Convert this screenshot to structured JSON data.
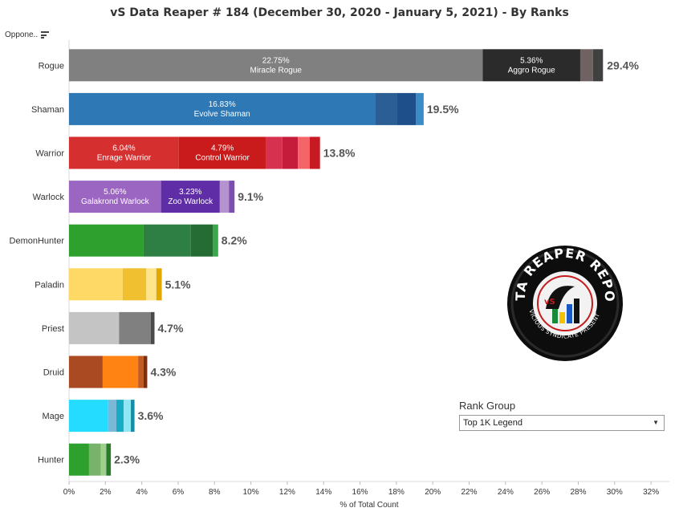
{
  "title": "vS Data Reaper #  184 (December 30, 2020 - January 5, 2021) - By Ranks",
  "sort_label": "Oppone..",
  "icons": {
    "sort": "sort-descending-icon",
    "dropdown": "chevron-down-icon"
  },
  "rank_group": {
    "label": "Rank Group",
    "selected": "Top 1K Legend"
  },
  "logo": {
    "title": "DATA REAPER REPORT",
    "subtitle": "VICIOUS SYNDICATE PRESENTS",
    "initials": "vS"
  },
  "chart_data": {
    "type": "bar",
    "orientation": "horizontal",
    "stacked": true,
    "title": "vS Data Reaper #  184 (December 30, 2020 - January 5, 2021) - By Ranks",
    "xlabel": "% of Total Count",
    "ylabel": "",
    "xlim": [
      0,
      32
    ],
    "xticks": [
      0,
      2,
      4,
      6,
      8,
      10,
      12,
      14,
      16,
      18,
      20,
      22,
      24,
      26,
      28,
      30,
      32
    ],
    "tick_suffix": "%",
    "grid": false,
    "categories": [
      "Rogue",
      "Shaman",
      "Warrior",
      "Warlock",
      "DemonHunter",
      "Paladin",
      "Priest",
      "Druid",
      "Mage",
      "Hunter"
    ],
    "totals": [
      "29.4%",
      "19.5%",
      "13.8%",
      "9.1%",
      "8.2%",
      "5.1%",
      "4.7%",
      "4.3%",
      "3.6%",
      "2.3%"
    ],
    "total_values": [
      29.4,
      19.5,
      13.8,
      9.1,
      8.2,
      5.1,
      4.7,
      4.3,
      3.6,
      2.3
    ],
    "segments": [
      [
        {
          "value": 22.75,
          "color": "#808080",
          "label": "22.75%",
          "name": "Miracle Rogue"
        },
        {
          "value": 5.36,
          "color": "#2b2b2b",
          "label": "5.36%",
          "name": "Aggro Rogue"
        },
        {
          "value": 0.7,
          "color": "#6e6262"
        },
        {
          "value": 0.55,
          "color": "#404040"
        }
      ],
      [
        {
          "value": 16.83,
          "color": "#2e78b5",
          "label": "16.83%",
          "name": "Evolve Shaman"
        },
        {
          "value": 1.2,
          "color": "#2b5e94"
        },
        {
          "value": 1.05,
          "color": "#1f4f8a"
        },
        {
          "value": 0.42,
          "color": "#3a8bc8"
        }
      ],
      [
        {
          "value": 6.04,
          "color": "#d62f2f",
          "label": "6.04%",
          "name": "Enrage Warrior"
        },
        {
          "value": 4.79,
          "color": "#c91b1b",
          "label": "4.79%",
          "name": "Control Warrior"
        },
        {
          "value": 0.9,
          "color": "#d6314f"
        },
        {
          "value": 0.85,
          "color": "#c41c3a"
        },
        {
          "value": 0.65,
          "color": "#f4656a"
        },
        {
          "value": 0.57,
          "color": "#c71a22"
        }
      ],
      [
        {
          "value": 5.06,
          "color": "#9b66c2",
          "label": "5.06%",
          "name": "Galakrond Warlock"
        },
        {
          "value": 3.23,
          "color": "#5f2da6",
          "label": "3.23%",
          "name": "Zoo Warlock"
        },
        {
          "value": 0.5,
          "color": "#b592d0"
        },
        {
          "value": 0.31,
          "color": "#7b4fb0"
        }
      ],
      [
        {
          "value": 4.1,
          "color": "#2ea02e"
        },
        {
          "value": 2.6,
          "color": "#2e7f44"
        },
        {
          "value": 1.2,
          "color": "#246c34"
        },
        {
          "value": 0.3,
          "color": "#3aa84a"
        }
      ],
      [
        {
          "value": 2.95,
          "color": "#ffd966"
        },
        {
          "value": 1.3,
          "color": "#f0c030"
        },
        {
          "value": 0.55,
          "color": "#ffe58a"
        },
        {
          "value": 0.3,
          "color": "#e0a800"
        }
      ],
      [
        {
          "value": 2.75,
          "color": "#c4c4c4"
        },
        {
          "value": 1.75,
          "color": "#808080"
        },
        {
          "value": 0.2,
          "color": "#4a4a4a"
        }
      ],
      [
        {
          "value": 1.85,
          "color": "#a94a22"
        },
        {
          "value": 1.95,
          "color": "#ff8312"
        },
        {
          "value": 0.3,
          "color": "#c35a1f"
        },
        {
          "value": 0.2,
          "color": "#7a3010"
        }
      ],
      [
        {
          "value": 2.15,
          "color": "#24dcff"
        },
        {
          "value": 0.45,
          "color": "#7ab8d8"
        },
        {
          "value": 0.4,
          "color": "#1aabc4"
        },
        {
          "value": 0.4,
          "color": "#8fe6f5"
        },
        {
          "value": 0.2,
          "color": "#0f8fa8"
        }
      ],
      [
        {
          "value": 1.1,
          "color": "#2ea02e"
        },
        {
          "value": 0.65,
          "color": "#79b36b"
        },
        {
          "value": 0.3,
          "color": "#9fcf8f"
        },
        {
          "value": 0.25,
          "color": "#2a7a2a"
        }
      ]
    ]
  }
}
